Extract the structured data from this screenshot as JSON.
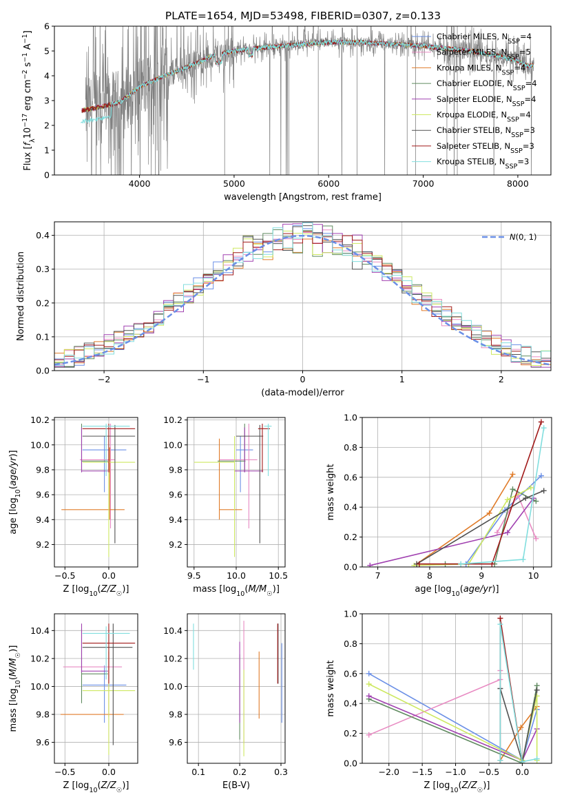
{
  "figure": {
    "title": "PLATE=1654, MJD=53498, FIBERID=0307, z=0.133"
  },
  "models": [
    {
      "name": "Chabrier MILES",
      "nssp": "4",
      "color": "#6a8fe6"
    },
    {
      "name": "Salpeter MILES",
      "nssp": "5",
      "color": "#e88ac2"
    },
    {
      "name": "Kroupa MILES",
      "nssp": "4",
      "color": "#e07b28"
    },
    {
      "name": "Chabrier ELODIE",
      "nssp": "4",
      "color": "#5f8a5f"
    },
    {
      "name": "Salpeter ELODIE",
      "nssp": "4",
      "color": "#a040b0"
    },
    {
      "name": "Kroupa ELODIE",
      "nssp": "4",
      "color": "#cde860"
    },
    {
      "name": "Chabrier STELIB",
      "nssp": "3",
      "color": "#505050"
    },
    {
      "name": "Salpeter STELIB",
      "nssp": "3",
      "color": "#a01818"
    },
    {
      "name": "Kroupa STELIB",
      "nssp": "3",
      "color": "#80dede"
    }
  ],
  "chart_data": [
    {
      "id": "spectrum",
      "type": "line",
      "xlabel": "wavelength [Angstrom, rest frame]",
      "ylabel": "Flux [f_λ10^-17 erg cm^-2 s^-1 A^-1]",
      "xlim": [
        3100,
        8350
      ],
      "ylim": [
        0,
        6
      ],
      "xticks": [
        4000,
        5000,
        6000,
        7000,
        8000
      ],
      "yticks": [
        0,
        1,
        2,
        3,
        4,
        5,
        6
      ],
      "grid": false,
      "legend_position": "right",
      "data_color": "#808080",
      "data_range": [
        3430,
        8170
      ],
      "model_range": [
        3390,
        8170
      ],
      "continuum": {
        "wavelength": [
          3390,
          3600,
          3800,
          4000,
          4200,
          4400,
          4600,
          4800,
          5000,
          5200,
          5500,
          5800,
          6000,
          6300,
          6600,
          7000,
          7500,
          7800,
          8000,
          8100
        ],
        "flux": [
          2.6,
          2.75,
          2.95,
          3.55,
          3.9,
          4.2,
          4.5,
          4.85,
          5.0,
          5.1,
          5.2,
          5.3,
          5.35,
          5.35,
          5.3,
          5.2,
          5.0,
          4.8,
          4.6,
          4.4
        ]
      }
    },
    {
      "id": "residuals",
      "type": "histogram",
      "xlabel": "(data-model)/error",
      "ylabel": "Normed distribution",
      "xlim": [
        -2.5,
        2.5
      ],
      "ylim": [
        0,
        0.44
      ],
      "xticks": [
        -2,
        -1,
        0,
        1,
        2
      ],
      "yticks": [
        0.0,
        0.1,
        0.2,
        0.3,
        0.4
      ],
      "grid": true,
      "legend": {
        "label": "N(0, 1)",
        "position": "top-right",
        "color": "#6a8fe6"
      },
      "bin_width": 0.1
    },
    {
      "id": "age-vs-Z",
      "type": "scatter",
      "xlabel": "Z [log10(Z/Z☉)]",
      "ylabel": "age  [log10(age/yr)]",
      "xlim": [
        -0.62,
        0.33
      ],
      "ylim": [
        9.02,
        10.22
      ],
      "xticks": [
        -0.5,
        0.0
      ],
      "yticks": [
        9.2,
        9.4,
        9.6,
        9.8,
        10.0,
        10.2
      ],
      "grid": true,
      "points": [
        {
          "x": -0.05,
          "y": 9.96,
          "xerr": [
            0.25,
            0.25
          ],
          "yerr": [
            0.34,
            0.11
          ]
        },
        {
          "x": 0.02,
          "y": 9.88,
          "xerr": [
            0.35,
            0.05
          ],
          "yerr": [
            0.55,
            0.29
          ]
        },
        {
          "x": 0.01,
          "y": 9.48,
          "xerr": [
            0.55,
            0.17
          ],
          "yerr": [
            0.08,
            0.5
          ]
        },
        {
          "x": -0.31,
          "y": 9.87,
          "xerr": [
            0.0,
            0.3
          ],
          "yerr": [
            0.09,
            0.3
          ]
        },
        {
          "x": -0.31,
          "y": 9.79,
          "xerr": [
            0.0,
            0.3
          ],
          "yerr": [
            0.01,
            0.35
          ]
        },
        {
          "x": 0.0,
          "y": 9.86,
          "xerr": [
            0.3,
            0.3
          ],
          "yerr": [
            0.76,
            0.21
          ]
        },
        {
          "x": 0.07,
          "y": 10.07,
          "xerr": [
            0.37,
            0.23
          ],
          "yerr": [
            0.86,
            0.09
          ]
        },
        {
          "x": 0.0,
          "y": 10.13,
          "xerr": [
            0.3,
            0.3
          ],
          "yerr": [
            0.35,
            0.04
          ]
        },
        {
          "x": -0.03,
          "y": 10.15,
          "xerr": [
            0.27,
            0.27
          ],
          "yerr": [
            0.4,
            0.02
          ]
        }
      ]
    },
    {
      "id": "age-vs-mass",
      "type": "scatter",
      "xlabel": "mass [log10(M/M☉)]",
      "ylabel": "",
      "xlim": [
        9.42,
        10.58
      ],
      "ylim": [
        9.02,
        10.22
      ],
      "xticks": [
        9.5,
        10.0,
        10.5
      ],
      "yticks": [
        9.2,
        9.4,
        9.6,
        9.8,
        10.0,
        10.2
      ],
      "grid": true,
      "points": [
        {
          "x": 10.05,
          "y": 9.96,
          "xerr": [
            0.05,
            0.15
          ],
          "yerr": [
            0.34,
            0.11
          ]
        },
        {
          "x": 10.15,
          "y": 9.88,
          "xerr": [
            0.35,
            0.1
          ],
          "yerr": [
            0.55,
            0.29
          ]
        },
        {
          "x": 9.8,
          "y": 9.48,
          "xerr": [
            0.0,
            0.27
          ],
          "yerr": [
            0.08,
            0.57
          ]
        },
        {
          "x": 10.1,
          "y": 9.87,
          "xerr": [
            0.32,
            0.01
          ],
          "yerr": [
            0.09,
            0.3
          ]
        },
        {
          "x": 10.1,
          "y": 9.79,
          "xerr": [
            0.12,
            0.22
          ],
          "yerr": [
            0.01,
            0.35
          ]
        },
        {
          "x": 9.98,
          "y": 9.86,
          "xerr": [
            0.48,
            0.0
          ],
          "yerr": [
            0.76,
            0.21
          ]
        },
        {
          "x": 10.28,
          "y": 10.07,
          "xerr": [
            0.28,
            0.04
          ],
          "yerr": [
            0.86,
            0.09
          ]
        },
        {
          "x": 10.31,
          "y": 10.13,
          "xerr": [
            0.05,
            0.09
          ],
          "yerr": [
            0.35,
            0.04
          ]
        },
        {
          "x": 10.38,
          "y": 10.15,
          "xerr": [
            0.05,
            0.04
          ],
          "yerr": [
            0.4,
            0.02
          ]
        }
      ]
    },
    {
      "id": "mass-weight-vs-age",
      "type": "line",
      "xlabel": "age  [log10(age/yr)]",
      "ylabel": "mass weight",
      "xlim": [
        6.7,
        10.35
      ],
      "ylim": [
        0,
        1.0
      ],
      "xticks": [
        7,
        8,
        9,
        10
      ],
      "yticks": [
        0.0,
        0.2,
        0.4,
        0.6,
        0.8,
        1.0
      ],
      "grid": true,
      "series": [
        {
          "x": [
            8.7,
            9.45,
            10.15
          ],
          "y": [
            0.02,
            0.38,
            0.61
          ]
        },
        {
          "x": [
            9.3,
            9.7,
            10.05
          ],
          "y": [
            0.23,
            0.48,
            0.19
          ]
        },
        {
          "x": [
            7.75,
            9.15,
            9.6
          ],
          "y": [
            0.02,
            0.36,
            0.62
          ]
        },
        {
          "x": [
            8.3,
            9.25,
            9.6,
            10.05
          ],
          "y": [
            0.02,
            0.02,
            0.52,
            0.44
          ]
        },
        {
          "x": [
            6.85,
            9.5,
            10.0
          ],
          "y": [
            0.01,
            0.23,
            0.46
          ]
        },
        {
          "x": [
            7.7,
            8.75,
            9.5,
            9.95
          ],
          "y": [
            0.01,
            0.02,
            0.45,
            0.53
          ]
        },
        {
          "x": [
            7.75,
            9.85,
            10.2
          ],
          "y": [
            0.02,
            0.46,
            0.51
          ]
        },
        {
          "x": [
            7.8,
            9.2,
            10.15
          ],
          "y": [
            0.02,
            0.02,
            0.97
          ]
        },
        {
          "x": [
            8.6,
            9.8,
            10.2
          ],
          "y": [
            0.02,
            0.05,
            0.93
          ]
        }
      ]
    },
    {
      "id": "mass-vs-Z",
      "type": "scatter",
      "xlabel": "Z [log10(Z/Z☉)]",
      "ylabel": "mass [log10(M/M☉)]",
      "xlim": [
        -0.62,
        0.33
      ],
      "ylim": [
        9.45,
        10.52
      ],
      "xticks": [
        -0.5,
        0.0
      ],
      "yticks": [
        9.6,
        9.8,
        10.0,
        10.2,
        10.4
      ],
      "grid": true,
      "points": [
        {
          "x": -0.05,
          "y": 10.01,
          "xerr": [
            0.25,
            0.25
          ],
          "yerr": [
            0.27,
            0.14
          ]
        },
        {
          "x": 0.0,
          "y": 10.14,
          "xerr": [
            0.52,
            0.15
          ],
          "yerr": [
            0.55,
            0.11
          ]
        },
        {
          "x": 0.0,
          "y": 9.8,
          "xerr": [
            0.55,
            0.17
          ],
          "yerr": [
            0.02,
            0.45
          ]
        },
        {
          "x": -0.31,
          "y": 10.09,
          "xerr": [
            0.0,
            0.3
          ],
          "yerr": [
            0.21,
            0.32
          ]
        },
        {
          "x": -0.31,
          "y": 10.11,
          "xerr": [
            0.0,
            0.3
          ],
          "yerr": [
            0.01,
            0.34
          ]
        },
        {
          "x": 0.0,
          "y": 9.97,
          "xerr": [
            0.3,
            0.3
          ],
          "yerr": [
            0.46,
            0.36
          ]
        },
        {
          "x": 0.05,
          "y": 10.28,
          "xerr": [
            0.35,
            0.22
          ],
          "yerr": [
            0.7,
            0.17
          ]
        },
        {
          "x": 0.0,
          "y": 10.31,
          "xerr": [
            0.3,
            0.3
          ],
          "yerr": [
            0.29,
            0.14
          ]
        },
        {
          "x": -0.03,
          "y": 10.38,
          "xerr": [
            0.27,
            0.27
          ],
          "yerr": [
            0.33,
            0.05
          ]
        }
      ]
    },
    {
      "id": "mass-vs-ebv",
      "type": "scatter",
      "xlabel": "E(B-V)",
      "ylabel": "",
      "xlim": [
        0.073,
        0.31
      ],
      "ylim": [
        9.45,
        10.52
      ],
      "xticks": [
        0.1,
        0.2,
        0.3
      ],
      "yticks": [
        9.6,
        9.8,
        10.0,
        10.2,
        10.4
      ],
      "grid": true,
      "points": [
        {
          "x": 0.302,
          "y": 10.01,
          "yerr": [
            0.27,
            0.3
          ]
        },
        {
          "x": 0.21,
          "y": 10.14,
          "yerr": [
            0.55,
            0.33
          ]
        },
        {
          "x": 0.247,
          "y": 10.0,
          "yerr": [
            0.23,
            0.25
          ]
        },
        {
          "x": 0.2,
          "y": 9.95,
          "yerr": [
            0.33,
            0.28
          ]
        },
        {
          "x": 0.2,
          "y": 10.03,
          "yerr": [
            0.29,
            0.29
          ]
        },
        {
          "x": 0.21,
          "y": 9.8,
          "yerr": [
            0.3,
            0.32
          ]
        },
        {
          "x": 0.293,
          "y": 10.28,
          "yerr": [
            0.26,
            0.17
          ]
        },
        {
          "x": 0.292,
          "y": 10.22,
          "yerr": [
            0.2,
            0.23
          ]
        },
        {
          "x": 0.088,
          "y": 10.3,
          "yerr": [
            0.18,
            0.15
          ]
        }
      ]
    },
    {
      "id": "mass-weight-vs-Z",
      "type": "line",
      "xlabel": "Z [log10(Z/Z☉)]",
      "ylabel": "mass weight",
      "xlim": [
        -2.4,
        0.44
      ],
      "ylim": [
        0,
        1.0
      ],
      "xticks": [
        -2.0,
        -1.5,
        -1.0,
        -0.5,
        0.0
      ],
      "yticks": [
        0.0,
        0.2,
        0.4,
        0.6,
        0.8,
        1.0
      ],
      "grid": true,
      "series": [
        {
          "x": [
            -2.3,
            0.0,
            0.22
          ],
          "y": [
            0.6,
            0.02,
            0.36
          ]
        },
        {
          "x": [
            -2.3,
            -0.33,
            -0.33
          ],
          "y": [
            0.19,
            0.56,
            0.62
          ]
        },
        {
          "x": [
            -0.33,
            -0.02,
            0.22
          ],
          "y": [
            0.02,
            0.24,
            0.38
          ]
        },
        {
          "x": [
            -2.3,
            0.0,
            0.22
          ],
          "y": [
            0.43,
            0.0,
            0.52
          ]
        },
        {
          "x": [
            -2.3,
            0.0,
            0.22
          ],
          "y": [
            0.45,
            0.02,
            0.23
          ]
        },
        {
          "x": [
            -2.3,
            0.0,
            0.22,
            0.22
          ],
          "y": [
            0.53,
            0.02,
            0.45,
            0.02
          ]
        },
        {
          "x": [
            -0.33,
            0.0,
            0.22
          ],
          "y": [
            0.5,
            0.01,
            0.49
          ]
        },
        {
          "x": [
            -0.33,
            -0.33,
            0.0
          ],
          "y": [
            0.02,
            0.97,
            0.01
          ]
        },
        {
          "x": [
            -0.33,
            -0.33,
            0.0,
            0.22
          ],
          "y": [
            0.02,
            0.93,
            0.01,
            0.03
          ]
        }
      ]
    }
  ]
}
